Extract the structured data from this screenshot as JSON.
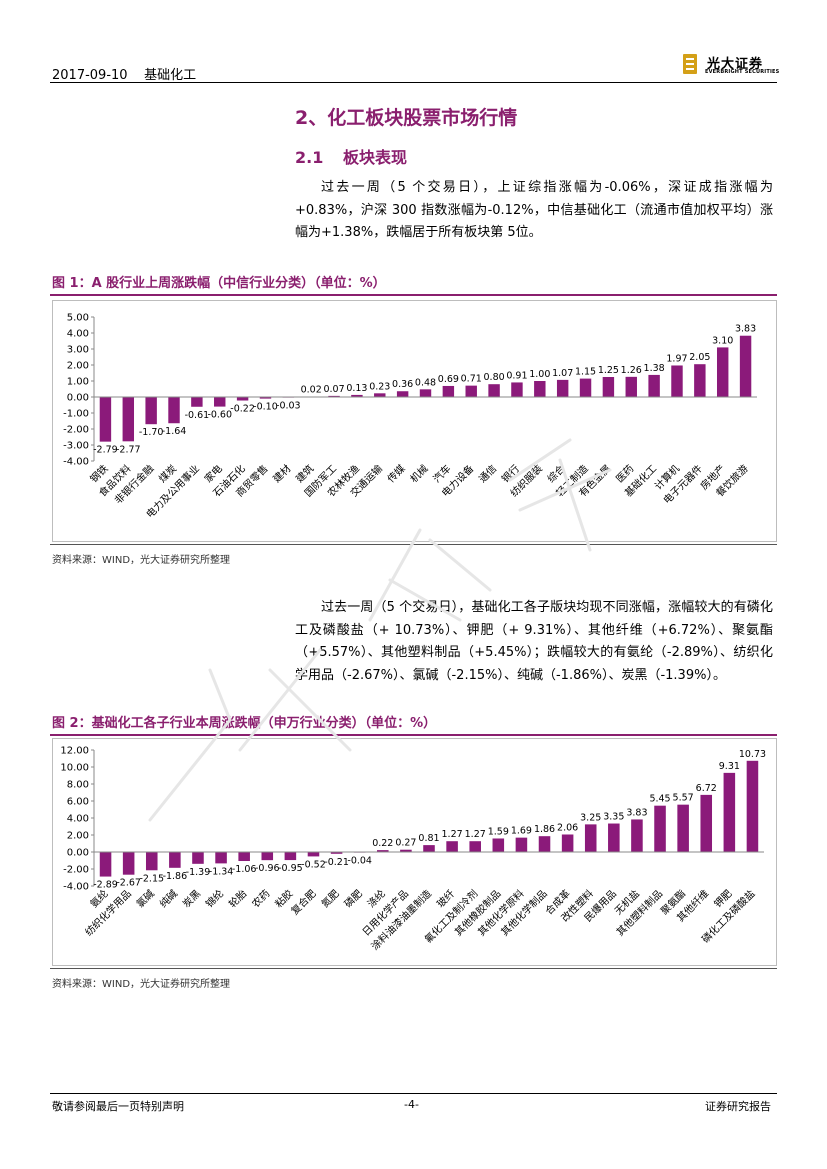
{
  "header": {
    "date": "2017-09-10",
    "sector": "基础化工"
  },
  "logo": {
    "name_cn": "光大证券",
    "name_en": "EVERBRIGHT SECURITIES",
    "accent": "#d4a017"
  },
  "section": {
    "title": "2、化工板块股票市场行情"
  },
  "subsection": {
    "number": "2.1",
    "title": "板块表现"
  },
  "para1": "过去一周（5 个交易日），上证综指涨幅为-0.06%，深证成指涨幅为+0.83%，沪深 300 指数涨幅为-0.12%，中信基础化工（流通市值加权平均）涨幅为+1.38%，跌幅居于所有板块第 5位。",
  "para2": "过去一周（5 个交易日），基础化工各子版块均现不同涨幅，涨幅较大的有磷化工及磷酸盐（+ 10.73%）、钾肥（+ 9.31%）、其他纤维（+6.72%）、聚氨酯（+5.57%）、其他塑料制品（+5.45%）；跌幅较大的有氨纶（-2.89%）、纺织化学用品（-2.67%）、氯碱（-2.15%）、纯碱（-1.86%）、炭黑（-1.39%）。",
  "fig1": {
    "title": "图 1：A 股行业上周涨跌幅（中信行业分类）（单位：%）",
    "source": "资料来源：WIND，光大证券研究所整理"
  },
  "fig2": {
    "title": "图 2：基础化工各子行业本周涨跌幅（申万行业分类）（单位：%）",
    "source": "资料来源：WIND，光大证券研究所整理"
  },
  "chart_data": [
    {
      "type": "bar",
      "title": "图 1：A 股行业上周涨跌幅（中信行业分类）（单位：%）",
      "categories": [
        "钢铁",
        "食品饮料",
        "非银行金融",
        "煤炭",
        "电力及公用事业",
        "家电",
        "石油石化",
        "商贸零售",
        "建材",
        "建筑",
        "国防军工",
        "农林牧渔",
        "交通运输",
        "传媒",
        "机械",
        "汽车",
        "电力设备",
        "通信",
        "银行",
        "纺织服装",
        "综合",
        "轻工制造",
        "有色金属",
        "医药",
        "基础化工",
        "计算机",
        "电子元器件",
        "房地产",
        "餐饮旅游"
      ],
      "values": [
        -2.79,
        -2.77,
        -1.7,
        -1.64,
        -0.61,
        -0.6,
        -0.22,
        -0.1,
        -0.03,
        0.02,
        0.07,
        0.13,
        0.23,
        0.36,
        0.48,
        0.69,
        0.71,
        0.8,
        0.91,
        1.0,
        1.07,
        1.15,
        1.25,
        1.26,
        1.38,
        1.97,
        2.05,
        3.1,
        3.83
      ],
      "labels": [
        "-2.79",
        "-2.77",
        "-1.70",
        "-1.64",
        "-0.61",
        "-0.60",
        "-0.22",
        "-0.10",
        "-0.03",
        "0.02",
        "0.07",
        "0.13",
        "0.23",
        "0.36",
        "0.48",
        "0.69",
        "0.71",
        "0.80",
        "0.91",
        "1.00",
        "1.07",
        "1.15",
        "1.25",
        "1.26",
        "1.38",
        "1.97",
        "2.05",
        "3.10",
        "3.83"
      ],
      "ylim": [
        -4,
        5
      ],
      "yticks": [
        "5.00",
        "4.00",
        "3.00",
        "2.00",
        "1.00",
        "0.00",
        "-1.00",
        "-2.00",
        "-3.00",
        "-4.00"
      ],
      "ytick_values": [
        5,
        4,
        3,
        2,
        1,
        0,
        -1,
        -2,
        -3,
        -4
      ],
      "bar_color": "#8b1a7a",
      "grid": false
    },
    {
      "type": "bar",
      "title": "图 2：基础化工各子行业本周涨跌幅（申万行业分类）（单位：%）",
      "categories": [
        "氨纶",
        "纺织化学用品",
        "氯碱",
        "纯碱",
        "炭黑",
        "锦纶",
        "轮胎",
        "农药",
        "粘胶",
        "复合肥",
        "氮肥",
        "磷肥",
        "涤纶",
        "日用化学产品",
        "涂料油漆油墨制造",
        "玻纤",
        "氟化工及制冷剂",
        "其他橡胶制品",
        "其他化学原料",
        "其他化学制品",
        "合成革",
        "改性塑料",
        "民爆用品",
        "无机盐",
        "其他塑料制品",
        "聚氨酯",
        "其他纤维",
        "钾肥",
        "磷化工及磷酸盐"
      ],
      "values": [
        -2.89,
        -2.67,
        -2.15,
        -1.86,
        -1.39,
        -1.34,
        -1.06,
        -0.96,
        -0.95,
        -0.52,
        -0.21,
        -0.04,
        0.22,
        0.27,
        0.81,
        1.27,
        1.27,
        1.59,
        1.69,
        1.86,
        2.06,
        3.25,
        3.35,
        3.83,
        5.45,
        5.57,
        6.72,
        9.31,
        10.73
      ],
      "labels": [
        "-2.89",
        "-2.67",
        "-2.15",
        "-1.86",
        "-1.39",
        "-1.34",
        "-1.06",
        "-0.96",
        "-0.95",
        "-0.52",
        "-0.21",
        "-0.04",
        "0.22",
        "0.27",
        "0.81",
        "1.27",
        "1.27",
        "1.59",
        "1.69",
        "1.86",
        "2.06",
        "3.25",
        "3.35",
        "3.83",
        "5.45",
        "5.57",
        "6.72",
        "9.31",
        "10.73"
      ],
      "ylim": [
        -4,
        12
      ],
      "yticks": [
        "12.00",
        "10.00",
        "8.00",
        "6.00",
        "4.00",
        "2.00",
        "0.00",
        "-2.00",
        "-4.00"
      ],
      "ytick_values": [
        12,
        10,
        8,
        6,
        4,
        2,
        0,
        -2,
        -4
      ],
      "bar_color": "#8b1a7a",
      "grid": false
    }
  ],
  "footer": {
    "disclaimer": "敬请参阅最后一页特别声明",
    "page": "-4-",
    "report_type": "证券研究报告"
  }
}
